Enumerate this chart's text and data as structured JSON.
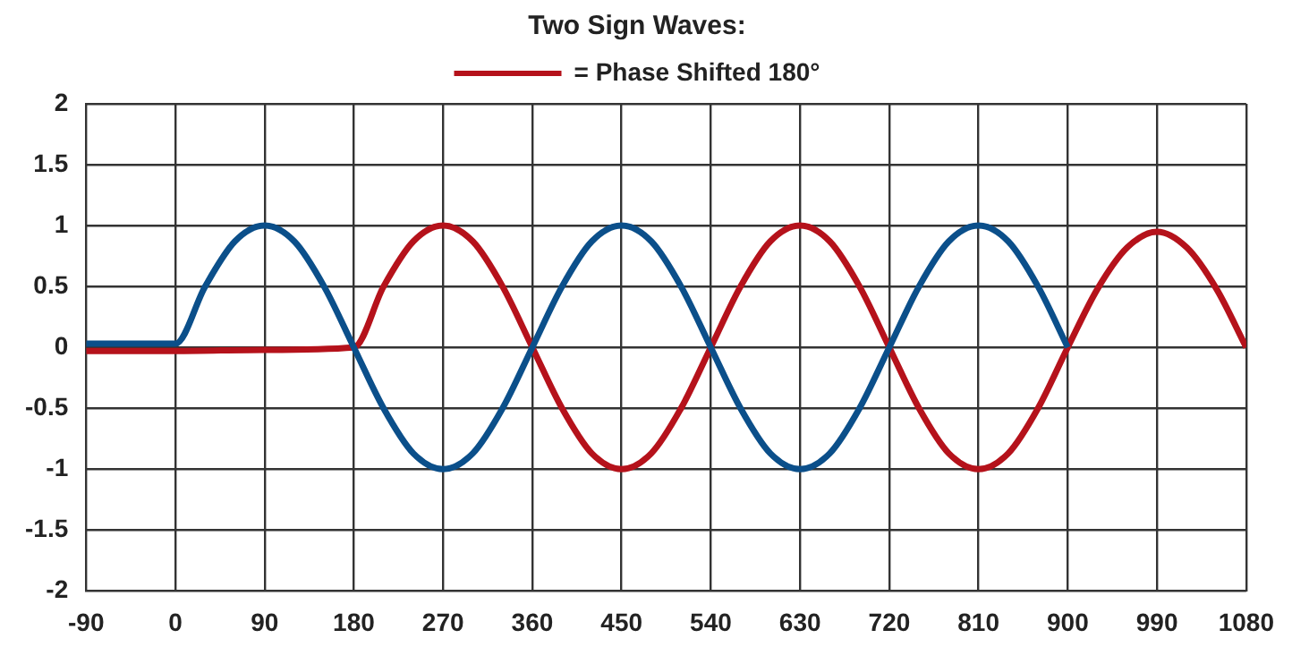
{
  "chart_data": {
    "type": "line",
    "title": "Two Sign Waves:",
    "xlim": [
      -90,
      1080
    ],
    "xticks": [
      -90,
      0,
      90,
      180,
      270,
      360,
      450,
      540,
      630,
      720,
      810,
      900,
      990,
      1080
    ],
    "ylim": [
      -2,
      2
    ],
    "yticks": [
      -2,
      -1.5,
      -1,
      -0.5,
      0,
      0.5,
      1,
      1.5,
      2
    ],
    "grid": true,
    "legend": "top",
    "marker": "none",
    "line_style": "solid",
    "series": [
      {
        "color": "#0b4f8a",
        "x": [
          -90,
          0,
          30,
          60,
          90,
          120,
          150,
          180,
          210,
          240,
          270,
          300,
          330,
          360,
          390,
          420,
          450,
          480,
          510,
          540,
          570,
          600,
          630,
          660,
          690,
          720,
          750,
          780,
          810,
          840,
          870,
          900
        ],
        "values": [
          0.03,
          0.03,
          0.5,
          0.87,
          1,
          0.87,
          0.5,
          0,
          -0.5,
          -0.87,
          -1,
          -0.87,
          -0.5,
          0,
          0.5,
          0.87,
          1,
          0.87,
          0.5,
          0,
          -0.5,
          -0.87,
          -1,
          -0.87,
          -0.5,
          0,
          0.5,
          0.87,
          1,
          0.87,
          0.5,
          0
        ]
      },
      {
        "name": "= Phase Shifted 180°",
        "color": "#b5121b",
        "x": [
          -90,
          0,
          90,
          180,
          210,
          240,
          270,
          300,
          330,
          360,
          390,
          420,
          450,
          480,
          510,
          540,
          570,
          600,
          630,
          660,
          690,
          720,
          750,
          780,
          810,
          840,
          870,
          900,
          930,
          960,
          990,
          1020,
          1050,
          1080
        ],
        "values": [
          -0.03,
          -0.03,
          -0.02,
          0,
          0.5,
          0.87,
          1,
          0.87,
          0.5,
          0,
          -0.5,
          -0.87,
          -1,
          -0.87,
          -0.5,
          0,
          0.5,
          0.87,
          1,
          0.87,
          0.5,
          0,
          -0.5,
          -0.87,
          -1,
          -0.87,
          -0.5,
          0,
          0.48,
          0.82,
          0.95,
          0.82,
          0.48,
          0
        ]
      }
    ]
  }
}
